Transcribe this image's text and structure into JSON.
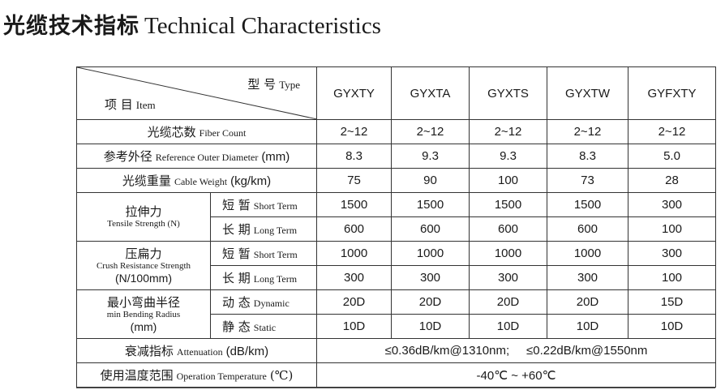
{
  "title": {
    "cn": "光缆技术指标",
    "en": "Technical Characteristics"
  },
  "header": {
    "type_cn": "型 号",
    "type_en": "Type",
    "item_cn": "项 目",
    "item_en": "Item",
    "models": [
      "GYXTY",
      "GYXTA",
      "GYXTS",
      "GYXTW",
      "GYFXTY"
    ]
  },
  "rows": {
    "fiber_count": {
      "cn": "光缆芯数",
      "en": "Fiber Count",
      "values": [
        "2~12",
        "2~12",
        "2~12",
        "2~12",
        "2~12"
      ]
    },
    "diameter": {
      "cn": "参考外径",
      "en": "Reference Outer Diameter",
      "unit": "(mm)",
      "values": [
        "8.3",
        "9.3",
        "9.3",
        "8.3",
        "5.0"
      ]
    },
    "weight": {
      "cn": "光缆重量",
      "en": "Cable Weight",
      "unit": "(kg/km)",
      "values": [
        "75",
        "90",
        "100",
        "73",
        "28"
      ]
    },
    "tensile": {
      "cn": "拉伸力",
      "en": "Tensile Strength",
      "unit": "(N)",
      "short": {
        "cn": "短 暂",
        "en": "Short Term",
        "values": [
          "1500",
          "1500",
          "1500",
          "1500",
          "300"
        ]
      },
      "long": {
        "cn": "长 期",
        "en": "Long Term",
        "values": [
          "600",
          "600",
          "600",
          "600",
          "100"
        ]
      }
    },
    "crush": {
      "cn": "压扁力",
      "en": "Crush Resistance Strength",
      "unit": "(N/100mm)",
      "short": {
        "cn": "短 暂",
        "en": "Short Term",
        "values": [
          "1000",
          "1000",
          "1000",
          "1000",
          "300"
        ]
      },
      "long": {
        "cn": "长 期",
        "en": "Long Term",
        "values": [
          "300",
          "300",
          "300",
          "300",
          "100"
        ]
      }
    },
    "bending": {
      "cn": "最小弯曲半径",
      "en": "min Bending Radius",
      "unit": "(mm)",
      "dynamic": {
        "cn": "动 态",
        "en": "Dynamic",
        "values": [
          "20D",
          "20D",
          "20D",
          "20D",
          "15D"
        ]
      },
      "static": {
        "cn": "静 态",
        "en": "Static",
        "values": [
          "10D",
          "10D",
          "10D",
          "10D",
          "10D"
        ]
      }
    },
    "attenuation": {
      "cn": "衰减指标",
      "en": "Attenuation",
      "unit": "(dB/km)",
      "v1310": "≤0.36dB/km@1310nm;",
      "v1550": "≤0.22dB/km@1550nm"
    },
    "temperature": {
      "cn": "使用温度范围",
      "en": "Operation Temperature",
      "unit": "(℃)",
      "value": "-40℃ ~ +60℃"
    }
  }
}
